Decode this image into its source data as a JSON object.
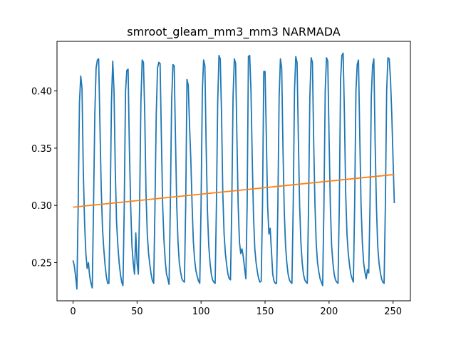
{
  "chart_data": {
    "type": "line",
    "title": "smroot_gleam_mm3_mm3 NARMADA",
    "xlim": [
      -12.55,
      263.55
    ],
    "xticks": [
      0,
      50,
      100,
      150,
      200,
      250
    ],
    "ylim": [
      0.2167,
      0.4433
    ],
    "yticks": [
      0.25,
      {
        "value": 0.3,
        "label": "0.30"
      },
      0.35,
      {
        "value": 0.4,
        "label": "0.40"
      }
    ],
    "series": [
      {
        "color": "#1f77b4",
        "x": [
          0,
          1,
          2,
          3,
          4,
          5,
          6,
          7,
          8,
          9,
          10,
          11,
          12,
          13,
          14,
          15,
          16,
          17,
          18,
          19,
          20,
          21,
          22,
          23,
          24,
          25,
          26,
          27,
          28,
          29,
          30,
          31,
          32,
          33,
          34,
          35,
          36,
          37,
          38,
          39,
          40,
          41,
          42,
          43,
          44,
          45,
          46,
          47,
          48,
          49,
          50,
          51,
          52,
          53,
          54,
          55,
          56,
          57,
          58,
          59,
          60,
          61,
          62,
          63,
          64,
          65,
          66,
          67,
          68,
          69,
          70,
          71,
          72,
          73,
          74,
          75,
          76,
          77,
          78,
          79,
          80,
          81,
          82,
          83,
          84,
          85,
          86,
          87,
          88,
          89,
          90,
          91,
          92,
          93,
          94,
          95,
          96,
          97,
          98,
          99,
          100,
          101,
          102,
          103,
          104,
          105,
          106,
          107,
          108,
          109,
          110,
          111,
          112,
          113,
          114,
          115,
          116,
          117,
          118,
          119,
          120,
          121,
          122,
          123,
          124,
          125,
          126,
          127,
          128,
          129,
          130,
          131,
          132,
          133,
          134,
          135,
          136,
          137,
          138,
          139,
          140,
          141,
          142,
          143,
          144,
          145,
          146,
          147,
          148,
          149,
          150,
          151,
          152,
          153,
          154,
          155,
          156,
          157,
          158,
          159,
          160,
          161,
          162,
          163,
          164,
          165,
          166,
          167,
          168,
          169,
          170,
          171,
          172,
          173,
          174,
          175,
          176,
          177,
          178,
          179,
          180,
          181,
          182,
          183,
          184,
          185,
          186,
          187,
          188,
          189,
          190,
          191,
          192,
          193,
          194,
          195,
          196,
          197,
          198,
          199,
          200,
          201,
          202,
          203,
          204,
          205,
          206,
          207,
          208,
          209,
          210,
          211,
          212,
          213,
          214,
          215,
          216,
          217,
          218,
          219,
          220,
          221,
          222,
          223,
          224,
          225,
          226,
          227,
          228,
          229,
          230,
          231,
          232,
          233,
          234,
          235,
          236,
          237,
          238,
          239,
          240,
          241,
          242,
          243,
          244,
          245,
          246,
          247,
          248,
          249,
          250,
          251
        ],
        "values": [
          0.252,
          0.247,
          0.238,
          0.227,
          0.3,
          0.39,
          0.413,
          0.402,
          0.33,
          0.285,
          0.258,
          0.245,
          0.25,
          0.238,
          0.232,
          0.228,
          0.3,
          0.38,
          0.42,
          0.427,
          0.428,
          0.37,
          0.315,
          0.28,
          0.262,
          0.248,
          0.238,
          0.232,
          0.232,
          0.3,
          0.39,
          0.426,
          0.4,
          0.33,
          0.285,
          0.265,
          0.25,
          0.24,
          0.233,
          0.23,
          0.3,
          0.4,
          0.418,
          0.419,
          0.35,
          0.3,
          0.265,
          0.25,
          0.24,
          0.276,
          0.25,
          0.24,
          0.3,
          0.39,
          0.427,
          0.425,
          0.38,
          0.31,
          0.275,
          0.258,
          0.248,
          0.24,
          0.234,
          0.232,
          0.3,
          0.38,
          0.42,
          0.425,
          0.424,
          0.36,
          0.3,
          0.27,
          0.252,
          0.24,
          0.236,
          0.231,
          0.3,
          0.39,
          0.423,
          0.422,
          0.36,
          0.3,
          0.268,
          0.25,
          0.242,
          0.236,
          0.234,
          0.233,
          0.3,
          0.41,
          0.405,
          0.37,
          0.34,
          0.3,
          0.268,
          0.252,
          0.243,
          0.238,
          0.234,
          0.232,
          0.3,
          0.4,
          0.427,
          0.422,
          0.35,
          0.295,
          0.265,
          0.25,
          0.24,
          0.235,
          0.233,
          0.232,
          0.3,
          0.39,
          0.431,
          0.428,
          0.38,
          0.31,
          0.275,
          0.258,
          0.248,
          0.24,
          0.236,
          0.235,
          0.3,
          0.395,
          0.428,
          0.424,
          0.36,
          0.3,
          0.268,
          0.258,
          0.262,
          0.255,
          0.245,
          0.236,
          0.3,
          0.43,
          0.431,
          0.4,
          0.34,
          0.29,
          0.262,
          0.25,
          0.242,
          0.236,
          0.233,
          0.234,
          0.3,
          0.417,
          0.417,
          0.36,
          0.3,
          0.275,
          0.28,
          0.26,
          0.24,
          0.234,
          0.232,
          0.232,
          0.3,
          0.395,
          0.428,
          0.42,
          0.35,
          0.295,
          0.265,
          0.25,
          0.24,
          0.235,
          0.233,
          0.232,
          0.3,
          0.4,
          0.43,
          0.425,
          0.36,
          0.3,
          0.268,
          0.25,
          0.24,
          0.235,
          0.233,
          0.232,
          0.3,
          0.395,
          0.429,
          0.425,
          0.355,
          0.3,
          0.266,
          0.25,
          0.242,
          0.236,
          0.233,
          0.23,
          0.3,
          0.4,
          0.429,
          0.426,
          0.36,
          0.3,
          0.265,
          0.25,
          0.24,
          0.235,
          0.233,
          0.232,
          0.3,
          0.41,
          0.431,
          0.433,
          0.38,
          0.31,
          0.275,
          0.258,
          0.248,
          0.24,
          0.236,
          0.233,
          0.3,
          0.4,
          0.423,
          0.427,
          0.36,
          0.3,
          0.268,
          0.25,
          0.242,
          0.236,
          0.244,
          0.241,
          0.3,
          0.395,
          0.422,
          0.428,
          0.355,
          0.3,
          0.265,
          0.25,
          0.242,
          0.236,
          0.233,
          0.232,
          0.3,
          0.4,
          0.429,
          0.428,
          0.41,
          0.38,
          0.34,
          0.302
        ]
      },
      {
        "color": "#ff7f0e",
        "x": [
          0,
          251
        ],
        "values": [
          0.2985,
          0.327
        ]
      }
    ]
  }
}
